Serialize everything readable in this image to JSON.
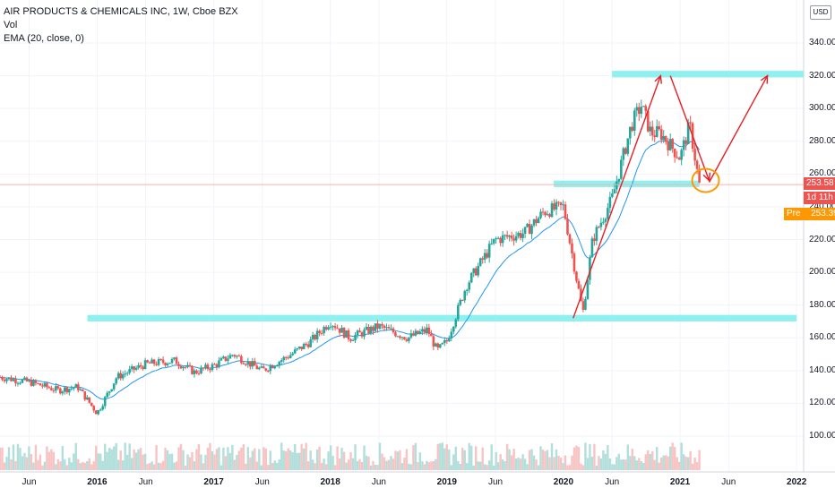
{
  "header": {
    "symbol_line": "AIR PRODUCTS & CHEMICALS INC, 1W, Cboe BZX",
    "vol_label": "Vol",
    "ema_label": "EMA (20, close, 0)"
  },
  "currency_button": "USD",
  "price_tags": {
    "last_price": "253.58",
    "countdown": "1d 11h",
    "pre_label": "Pre",
    "pre_price": "253.39"
  },
  "colors": {
    "up": "#26a69a",
    "down": "#ef5350",
    "ema": "#2196f3",
    "zone": "#8ff0f0",
    "annotation": "#e81e23",
    "circle": "#ff9800",
    "pre_tag": "#ff9800"
  },
  "chart_data": {
    "type": "candlestick",
    "title": "AIR PRODUCTS & CHEMICALS INC, 1W, Cboe BZX",
    "ylim": [
      85,
      350
    ],
    "ytick_labels": [
      "100.00",
      "120.00",
      "140.00",
      "160.00",
      "180.00",
      "200.00",
      "220.00",
      "240.00",
      "260.00",
      "280.00",
      "300.00",
      "320.00",
      "340.00"
    ],
    "xlim": [
      "2015-03",
      "2022-02"
    ],
    "xtick_labels": [
      {
        "label": "Jun",
        "date": "2015-06",
        "year": false
      },
      {
        "label": "2016",
        "date": "2016-01",
        "year": true
      },
      {
        "label": "Jun",
        "date": "2016-06",
        "year": false
      },
      {
        "label": "2017",
        "date": "2017-01",
        "year": true
      },
      {
        "label": "Jun",
        "date": "2017-06",
        "year": false
      },
      {
        "label": "2018",
        "date": "2018-01",
        "year": true
      },
      {
        "label": "Jun",
        "date": "2018-06",
        "year": false
      },
      {
        "label": "2019",
        "date": "2019-01",
        "year": true
      },
      {
        "label": "Jun",
        "date": "2019-06",
        "year": false
      },
      {
        "label": "2020",
        "date": "2020-01",
        "year": true
      },
      {
        "label": "Jun",
        "date": "2020-06",
        "year": false
      },
      {
        "label": "2021",
        "date": "2021-01",
        "year": true
      },
      {
        "label": "Jun",
        "date": "2021-06",
        "year": false
      },
      {
        "label": "2022",
        "date": "2022-01",
        "year": true
      }
    ],
    "last_price": 253.58,
    "price_path": [
      [
        "2015-03",
        136
      ],
      [
        "2015-06",
        133
      ],
      [
        "2015-09",
        128
      ],
      [
        "2015-11",
        130
      ],
      [
        "2016-01",
        114
      ],
      [
        "2016-03",
        136
      ],
      [
        "2016-06",
        144
      ],
      [
        "2016-09",
        146
      ],
      [
        "2016-11",
        139
      ],
      [
        "2017-01",
        143
      ],
      [
        "2017-03",
        150
      ],
      [
        "2017-06",
        140
      ],
      [
        "2017-09",
        150
      ],
      [
        "2017-11",
        158
      ],
      [
        "2018-01",
        170
      ],
      [
        "2018-03",
        160
      ],
      [
        "2018-06",
        167
      ],
      [
        "2018-09",
        160
      ],
      [
        "2018-11",
        165
      ],
      [
        "2018-12",
        152
      ],
      [
        "2019-01",
        158
      ],
      [
        "2019-03",
        192
      ],
      [
        "2019-06",
        220
      ],
      [
        "2019-09",
        224
      ],
      [
        "2019-11",
        237
      ],
      [
        "2020-01",
        240
      ],
      [
        "2020-03",
        175
      ],
      [
        "2020-04",
        220
      ],
      [
        "2020-06",
        245
      ],
      [
        "2020-08",
        290
      ],
      [
        "2020-09",
        302
      ],
      [
        "2020-10",
        285
      ],
      [
        "2020-11",
        285
      ],
      [
        "2021-01",
        270
      ],
      [
        "2021-02",
        290
      ],
      [
        "2021-03",
        253
      ]
    ],
    "volume_range": [
      2,
      16
    ],
    "ema": {
      "name": "EMA (20, close, 0)",
      "period": 20
    },
    "annotations": {
      "zones": [
        {
          "from": "2015-12",
          "to": "2022-01",
          "low": 170,
          "high": 174
        },
        {
          "from": "2019-12",
          "to": "2021-03",
          "low": 252,
          "high": 256
        },
        {
          "from": "2020-06",
          "to": "2022-02",
          "low": 319,
          "high": 323
        }
      ],
      "arrows": [
        {
          "from": [
            "2020-02",
            172
          ],
          "to": [
            "2020-11",
            320
          ]
        },
        {
          "from": [
            "2020-12",
            320
          ],
          "to": [
            "2021-04",
            256
          ]
        },
        {
          "from": [
            "2021-04",
            255
          ],
          "to": [
            "2021-10",
            320
          ]
        }
      ],
      "circle": {
        "date": "2021-04",
        "value": 255
      }
    }
  }
}
